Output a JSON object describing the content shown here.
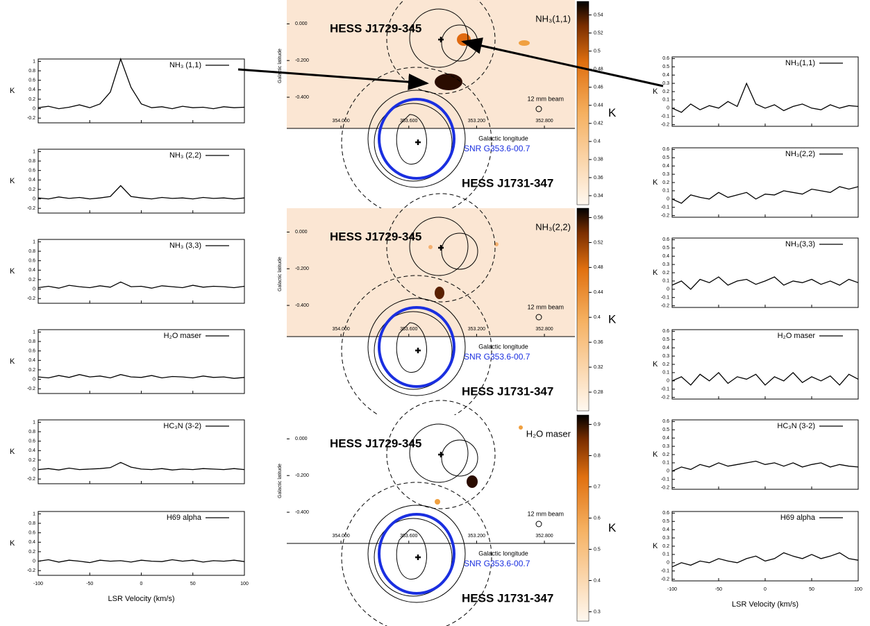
{
  "left_spectra": {
    "x_label": "LSR Velocity (km/s)",
    "y_label": "K",
    "xlim": [
      -100,
      100
    ],
    "xticks": [
      -100,
      -50,
      0,
      50,
      100
    ],
    "ylim": [
      -0.3,
      1.05
    ],
    "yticks": [
      -0.2,
      0,
      0.2,
      0.4,
      0.6,
      0.8,
      1
    ],
    "x": [
      -100,
      -90,
      -80,
      -70,
      -60,
      -50,
      -40,
      -30,
      -20,
      -10,
      0,
      10,
      20,
      30,
      40,
      50,
      60,
      70,
      80,
      90,
      100
    ],
    "panels": [
      {
        "label": "NH₃ (1,1)",
        "values": [
          0.02,
          0.05,
          0.0,
          0.03,
          0.08,
          0.02,
          0.1,
          0.35,
          1.05,
          0.45,
          0.1,
          0.02,
          0.04,
          0.0,
          0.05,
          0.02,
          0.03,
          0.0,
          0.04,
          0.02,
          0.03
        ]
      },
      {
        "label": "NH₃ (2,2)",
        "values": [
          0.02,
          0.0,
          0.04,
          0.01,
          0.03,
          0.0,
          0.02,
          0.05,
          0.28,
          0.05,
          0.02,
          0.0,
          0.03,
          0.01,
          0.02,
          0.0,
          0.03,
          0.01,
          0.02,
          0.0,
          0.02
        ]
      },
      {
        "label": "NH₃ (3,3)",
        "values": [
          0.03,
          0.06,
          0.02,
          0.08,
          0.05,
          0.03,
          0.07,
          0.04,
          0.15,
          0.05,
          0.06,
          0.02,
          0.07,
          0.05,
          0.03,
          0.08,
          0.04,
          0.06,
          0.05,
          0.03,
          0.06
        ]
      },
      {
        "label": "H₂O maser",
        "values": [
          0.05,
          0.03,
          0.08,
          0.04,
          0.1,
          0.05,
          0.07,
          0.03,
          0.1,
          0.05,
          0.04,
          0.08,
          0.03,
          0.06,
          0.05,
          0.03,
          0.07,
          0.04,
          0.05,
          0.02,
          0.04
        ]
      },
      {
        "label": "HC₃N (3-2)",
        "values": [
          0.0,
          0.02,
          -0.01,
          0.03,
          0.0,
          0.01,
          0.02,
          0.04,
          0.15,
          0.05,
          0.01,
          0.0,
          0.02,
          -0.01,
          0.01,
          0.0,
          0.02,
          0.01,
          0.0,
          0.02,
          0.0
        ]
      },
      {
        "label": "H69 alpha",
        "values": [
          0.0,
          0.03,
          -0.02,
          0.02,
          0.0,
          -0.03,
          0.02,
          0.0,
          0.01,
          -0.02,
          0.02,
          0.0,
          -0.01,
          0.03,
          0.0,
          0.02,
          -0.02,
          0.01,
          0.0,
          0.02,
          -0.01
        ]
      }
    ]
  },
  "right_spectra": {
    "x_label": "LSR Velocity (km/s)",
    "y_label": "K",
    "xlim": [
      -100,
      100
    ],
    "xticks": [
      -100,
      -50,
      0,
      50,
      100
    ],
    "ylim": [
      -0.22,
      0.62
    ],
    "yticks": [
      -0.2,
      -0.1,
      0,
      0.1,
      0.2,
      0.3,
      0.4,
      0.5,
      0.6
    ],
    "x": [
      -100,
      -90,
      -80,
      -70,
      -60,
      -50,
      -40,
      -30,
      -20,
      -10,
      0,
      10,
      20,
      30,
      40,
      50,
      60,
      70,
      80,
      90,
      100
    ],
    "panels": [
      {
        "label": "NH₃(1,1)",
        "values": [
          0.0,
          -0.05,
          0.05,
          -0.02,
          0.03,
          0.0,
          0.08,
          0.02,
          0.3,
          0.05,
          0.0,
          0.04,
          -0.03,
          0.02,
          0.05,
          0.0,
          -0.02,
          0.04,
          0.0,
          0.03,
          0.02
        ]
      },
      {
        "label": "NH₃(2,2)",
        "values": [
          0.0,
          -0.05,
          0.05,
          0.02,
          0.0,
          0.08,
          0.02,
          0.05,
          0.08,
          0.0,
          0.06,
          0.05,
          0.1,
          0.08,
          0.06,
          0.12,
          0.1,
          0.08,
          0.15,
          0.12,
          0.15
        ]
      },
      {
        "label": "NH₃(3,3)",
        "values": [
          0.05,
          0.1,
          0.0,
          0.12,
          0.08,
          0.15,
          0.05,
          0.1,
          0.12,
          0.06,
          0.1,
          0.15,
          0.05,
          0.1,
          0.08,
          0.12,
          0.06,
          0.1,
          0.05,
          0.12,
          0.08
        ]
      },
      {
        "label": "H₂O maser",
        "values": [
          0.0,
          0.05,
          -0.05,
          0.08,
          0.0,
          0.1,
          -0.03,
          0.05,
          0.02,
          0.08,
          -0.05,
          0.05,
          0.0,
          0.1,
          -0.02,
          0.05,
          0.0,
          0.06,
          -0.05,
          0.08,
          0.02
        ]
      },
      {
        "label": "HC₃N (3-2)",
        "values": [
          0.0,
          0.05,
          0.02,
          0.08,
          0.05,
          0.1,
          0.06,
          0.08,
          0.1,
          0.12,
          0.08,
          0.1,
          0.06,
          0.1,
          0.05,
          0.08,
          0.1,
          0.05,
          0.08,
          0.06,
          0.05
        ]
      },
      {
        "label": "H69 alpha",
        "values": [
          -0.05,
          0.0,
          -0.03,
          0.02,
          0.0,
          0.05,
          0.02,
          0.0,
          0.05,
          0.08,
          0.02,
          0.05,
          0.12,
          0.08,
          0.05,
          0.1,
          0.05,
          0.08,
          0.12,
          0.05,
          0.03
        ]
      }
    ]
  },
  "map_axes": {
    "x_label": "Galactic longitude",
    "y_label": "Galactic latitude",
    "xlim": [
      354.32,
      352.62
    ],
    "ylim": [
      -0.57,
      0.13
    ],
    "xticks": [
      {
        "value": 354,
        "label": "354.000"
      },
      {
        "value": 353.6,
        "label": "353.600"
      },
      {
        "value": 353.2,
        "label": "353.200"
      },
      {
        "value": 352.8,
        "label": "352.800"
      }
    ],
    "yticks": [
      {
        "value": 0,
        "label": "0.000"
      },
      {
        "value": -0.2,
        "label": "-0.200"
      },
      {
        "value": -0.4,
        "label": "-0.400"
      }
    ]
  },
  "maps": [
    {
      "line_label": "NH₃(1,1)",
      "source_north": "HESS J1729-345",
      "source_south": "HESS J1731-347",
      "snr": "SNR G353.6-00.7",
      "beam": "12 mm beam",
      "colorbar": {
        "unit": "K",
        "lim": [
          0.33,
          0.555
        ],
        "ticks": [
          0.34,
          0.36,
          0.38,
          0.4,
          0.42,
          0.44,
          0.46,
          0.48,
          0.5,
          0.52,
          0.54
        ]
      }
    },
    {
      "line_label": "NH₃(2,2)",
      "source_north": "HESS J1729-345",
      "source_south": "HESS J1731-347",
      "snr": "SNR G353.6-00.7",
      "beam": "12 mm beam",
      "colorbar": {
        "unit": "K",
        "lim": [
          0.25,
          0.575
        ],
        "ticks": [
          0.28,
          0.32,
          0.36,
          0.4,
          0.44,
          0.48,
          0.52,
          0.56
        ]
      }
    },
    {
      "line_label": "H₂O maser",
      "source_north": "HESS J1729-345",
      "source_south": "HESS J1731-347",
      "snr": "SNR G353.6-00.7",
      "beam": "12 mm beam",
      "colorbar": {
        "unit": "K",
        "lim": [
          0.27,
          0.93
        ],
        "ticks": [
          0.3,
          0.4,
          0.5,
          0.6,
          0.7,
          0.8,
          0.9
        ]
      }
    }
  ]
}
